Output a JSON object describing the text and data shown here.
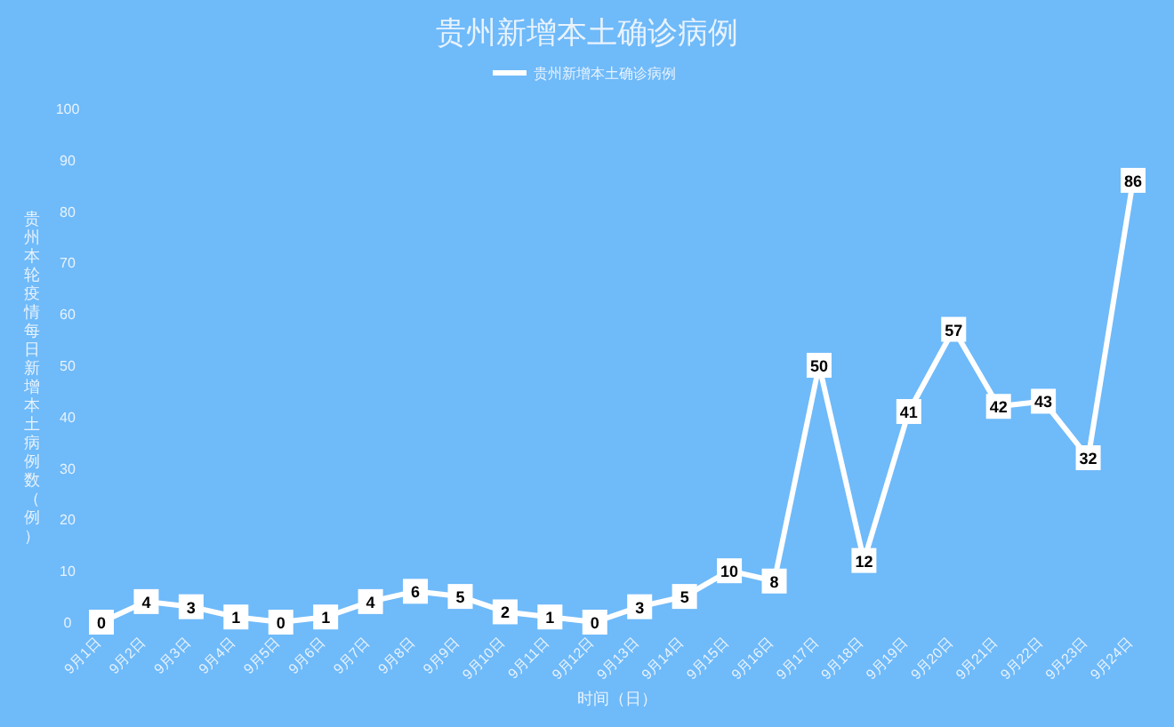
{
  "chart_data": {
    "type": "line",
    "title": "贵州新增本土确诊病例",
    "xlabel": "时间（日）",
    "ylabel": "贵州本轮疫情每日新增本土病例数（例）",
    "categories": [
      "9月1日",
      "9月2日",
      "9月3日",
      "9月4日",
      "9月5日",
      "9月6日",
      "9月7日",
      "9月8日",
      "9月9日",
      "9月10日",
      "9月11日",
      "9月12日",
      "9月13日",
      "9月14日",
      "9月15日",
      "9月16日",
      "9月17日",
      "9月18日",
      "9月19日",
      "9月20日",
      "9月21日",
      "9月22日",
      "9月23日",
      "9月24日"
    ],
    "series": [
      {
        "name": "贵州新增本土确诊病例",
        "color": "#ffffff",
        "values": [
          0,
          4,
          3,
          1,
          0,
          1,
          4,
          6,
          5,
          2,
          1,
          0,
          3,
          5,
          10,
          8,
          50,
          12,
          41,
          57,
          42,
          43,
          32,
          86
        ]
      }
    ],
    "ylim": [
      0,
      100
    ],
    "yticks": [
      0,
      10,
      20,
      30,
      40,
      50,
      60,
      70,
      80,
      90,
      100
    ],
    "data_labels": true,
    "legend": "top",
    "grid": false,
    "marker": "square",
    "line_style": "solid"
  }
}
